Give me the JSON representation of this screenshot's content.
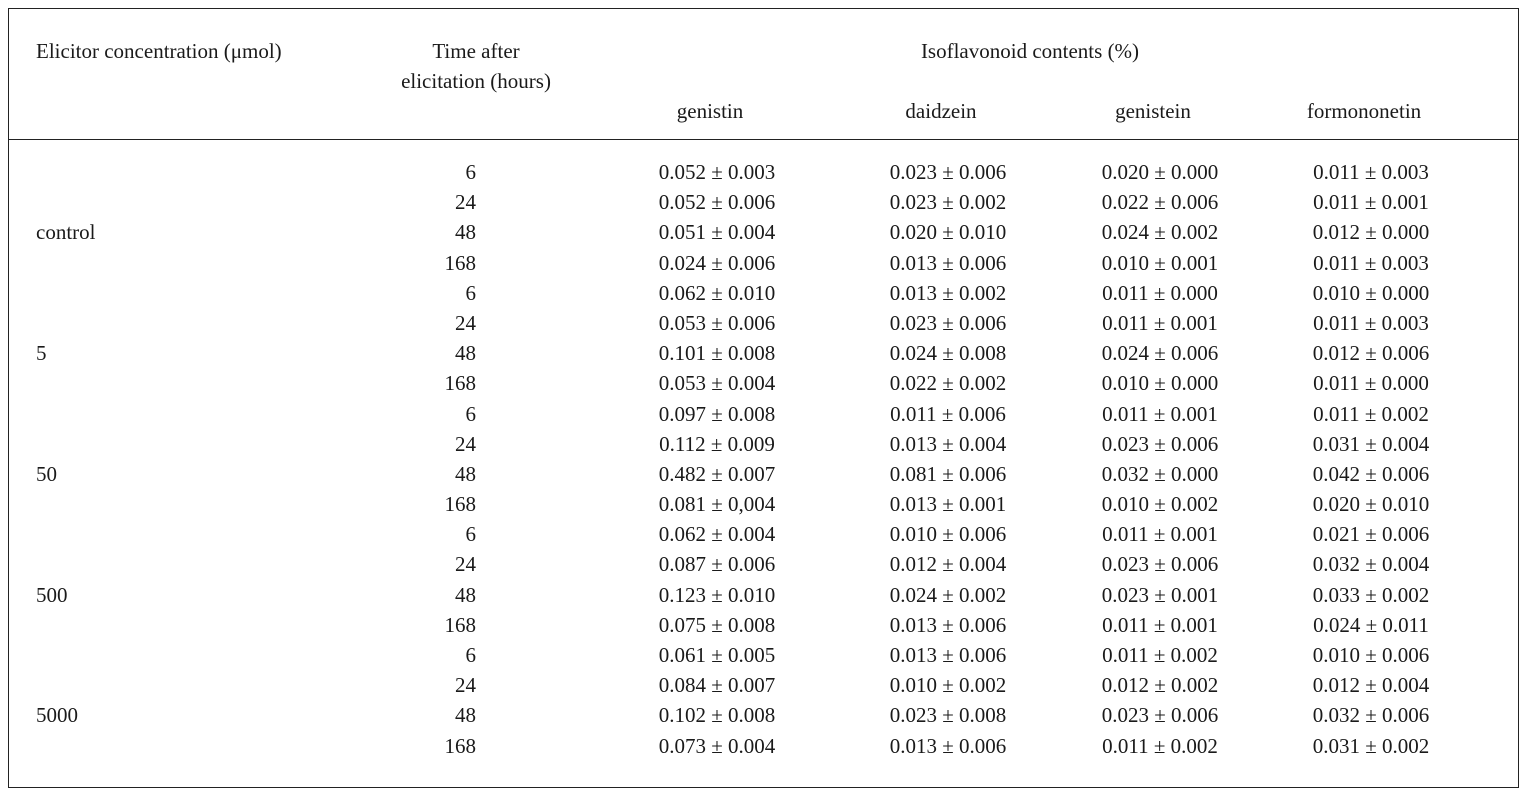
{
  "table": {
    "headers": {
      "concentration": "Elicitor concentration (μmol)",
      "time_line1": "Time after",
      "time_line2": "elicitation (hours)",
      "group": "Isoflavonoid contents (%)",
      "genistin": "genistin",
      "daidzein": "daidzein",
      "genistein": "genistein",
      "formononetin": "formononetin"
    },
    "rows": [
      {
        "conc": "",
        "time": "6",
        "genistin": "0.052 ± 0.003",
        "daidzein": "0.023 ± 0.006",
        "genistein": "0.020 ± 0.000",
        "formononetin": "0.011 ± 0.003"
      },
      {
        "conc": "",
        "time": "24",
        "genistin": "0.052 ± 0.006",
        "daidzein": "0.023 ± 0.002",
        "genistein": "0.022 ± 0.006",
        "formononetin": "0.011 ± 0.001"
      },
      {
        "conc": "control",
        "time": "48",
        "genistin": "0.051 ± 0.004",
        "daidzein": "0.020 ± 0.010",
        "genistein": "0.024 ± 0.002",
        "formononetin": "0.012 ± 0.000"
      },
      {
        "conc": "",
        "time": "168",
        "genistin": "0.024 ± 0.006",
        "daidzein": "0.013 ± 0.006",
        "genistein": "0.010 ± 0.001",
        "formononetin": "0.011 ± 0.003"
      },
      {
        "conc": "",
        "time": "6",
        "genistin": "0.062 ± 0.010",
        "daidzein": "0.013 ± 0.002",
        "genistein": "0.011 ± 0.000",
        "formononetin": "0.010 ± 0.000"
      },
      {
        "conc": "",
        "time": "24",
        "genistin": "0.053 ± 0.006",
        "daidzein": "0.023 ± 0.006",
        "genistein": "0.011 ± 0.001",
        "formononetin": "0.011 ± 0.003"
      },
      {
        "conc": "5",
        "time": "48",
        "genistin": "0.101 ± 0.008",
        "daidzein": "0.024 ± 0.008",
        "genistein": "0.024 ± 0.006",
        "formononetin": "0.012 ± 0.006"
      },
      {
        "conc": "",
        "time": "168",
        "genistin": "0.053 ± 0.004",
        "daidzein": "0.022 ± 0.002",
        "genistein": "0.010 ± 0.000",
        "formononetin": "0.011 ± 0.000"
      },
      {
        "conc": "",
        "time": "6",
        "genistin": "0.097 ± 0.008",
        "daidzein": "0.011 ± 0.006",
        "genistein": "0.011 ± 0.001",
        "formononetin": "0.011 ± 0.002"
      },
      {
        "conc": "",
        "time": "24",
        "genistin": "0.112 ± 0.009",
        "daidzein": "0.013 ± 0.004",
        "genistein": "0.023 ± 0.006",
        "formononetin": "0.031 ± 0.004"
      },
      {
        "conc": "50",
        "time": "48",
        "genistin": "0.482 ± 0.007",
        "daidzein": "0.081 ± 0.006",
        "genistein": "0.032 ± 0.000",
        "formononetin": "0.042 ± 0.006"
      },
      {
        "conc": "",
        "time": "168",
        "genistin": "0.081 ± 0,004",
        "daidzein": "0.013 ± 0.001",
        "genistein": "0.010 ± 0.002",
        "formononetin": "0.020 ± 0.010"
      },
      {
        "conc": "",
        "time": "6",
        "genistin": "0.062 ± 0.004",
        "daidzein": "0.010 ± 0.006",
        "genistein": "0.011 ± 0.001",
        "formononetin": "0.021 ± 0.006"
      },
      {
        "conc": "",
        "time": "24",
        "genistin": "0.087 ± 0.006",
        "daidzein": "0.012 ± 0.004",
        "genistein": "0.023 ± 0.006",
        "formononetin": "0.032 ± 0.004"
      },
      {
        "conc": "500",
        "time": "48",
        "genistin": "0.123 ± 0.010",
        "daidzein": "0.024 ± 0.002",
        "genistein": "0.023 ± 0.001",
        "formononetin": "0.033 ± 0.002"
      },
      {
        "conc": "",
        "time": "168",
        "genistin": "0.075 ± 0.008",
        "daidzein": "0.013 ± 0.006",
        "genistein": "0.011 ± 0.001",
        "formononetin": "0.024 ± 0.011"
      },
      {
        "conc": "",
        "time": "6",
        "genistin": "0.061 ± 0.005",
        "daidzein": "0.013 ± 0.006",
        "genistein": "0.011 ± 0.002",
        "formononetin": "0.010 ± 0.006"
      },
      {
        "conc": "",
        "time": "24",
        "genistin": "0.084 ± 0.007",
        "daidzein": "0.010 ± 0.002",
        "genistein": "0.012 ± 0.002",
        "formononetin": "0.012 ± 0.004"
      },
      {
        "conc": "5000",
        "time": "48",
        "genistin": "0.102 ± 0.008",
        "daidzein": "0.023 ± 0.008",
        "genistein": "0.023 ± 0.006",
        "formononetin": "0.032 ± 0.006"
      },
      {
        "conc": "",
        "time": "168",
        "genistin": "0.073 ± 0.004",
        "daidzein": "0.013 ± 0.006",
        "genistein": "0.011 ± 0.002",
        "formononetin": "0.031 ± 0.002"
      }
    ]
  }
}
